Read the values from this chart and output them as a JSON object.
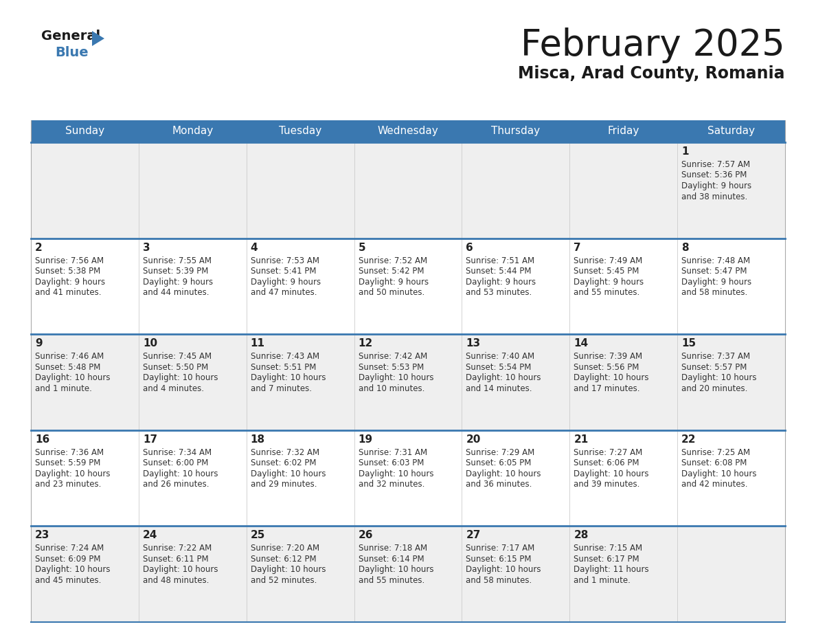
{
  "title": "February 2025",
  "subtitle": "Misca, Arad County, Romania",
  "header_color": "#3a78b0",
  "header_text_color": "#ffffff",
  "day_number_color": "#222222",
  "text_color": "#333333",
  "line_color": "#3a78b0",
  "bg_even": "#efefef",
  "bg_odd": "#ffffff",
  "days_of_week": [
    "Sunday",
    "Monday",
    "Tuesday",
    "Wednesday",
    "Thursday",
    "Friday",
    "Saturday"
  ],
  "weeks": [
    [
      {
        "day": "",
        "info": ""
      },
      {
        "day": "",
        "info": ""
      },
      {
        "day": "",
        "info": ""
      },
      {
        "day": "",
        "info": ""
      },
      {
        "day": "",
        "info": ""
      },
      {
        "day": "",
        "info": ""
      },
      {
        "day": "1",
        "info": "Sunrise: 7:57 AM\nSunset: 5:36 PM\nDaylight: 9 hours\nand 38 minutes."
      }
    ],
    [
      {
        "day": "2",
        "info": "Sunrise: 7:56 AM\nSunset: 5:38 PM\nDaylight: 9 hours\nand 41 minutes."
      },
      {
        "day": "3",
        "info": "Sunrise: 7:55 AM\nSunset: 5:39 PM\nDaylight: 9 hours\nand 44 minutes."
      },
      {
        "day": "4",
        "info": "Sunrise: 7:53 AM\nSunset: 5:41 PM\nDaylight: 9 hours\nand 47 minutes."
      },
      {
        "day": "5",
        "info": "Sunrise: 7:52 AM\nSunset: 5:42 PM\nDaylight: 9 hours\nand 50 minutes."
      },
      {
        "day": "6",
        "info": "Sunrise: 7:51 AM\nSunset: 5:44 PM\nDaylight: 9 hours\nand 53 minutes."
      },
      {
        "day": "7",
        "info": "Sunrise: 7:49 AM\nSunset: 5:45 PM\nDaylight: 9 hours\nand 55 minutes."
      },
      {
        "day": "8",
        "info": "Sunrise: 7:48 AM\nSunset: 5:47 PM\nDaylight: 9 hours\nand 58 minutes."
      }
    ],
    [
      {
        "day": "9",
        "info": "Sunrise: 7:46 AM\nSunset: 5:48 PM\nDaylight: 10 hours\nand 1 minute."
      },
      {
        "day": "10",
        "info": "Sunrise: 7:45 AM\nSunset: 5:50 PM\nDaylight: 10 hours\nand 4 minutes."
      },
      {
        "day": "11",
        "info": "Sunrise: 7:43 AM\nSunset: 5:51 PM\nDaylight: 10 hours\nand 7 minutes."
      },
      {
        "day": "12",
        "info": "Sunrise: 7:42 AM\nSunset: 5:53 PM\nDaylight: 10 hours\nand 10 minutes."
      },
      {
        "day": "13",
        "info": "Sunrise: 7:40 AM\nSunset: 5:54 PM\nDaylight: 10 hours\nand 14 minutes."
      },
      {
        "day": "14",
        "info": "Sunrise: 7:39 AM\nSunset: 5:56 PM\nDaylight: 10 hours\nand 17 minutes."
      },
      {
        "day": "15",
        "info": "Sunrise: 7:37 AM\nSunset: 5:57 PM\nDaylight: 10 hours\nand 20 minutes."
      }
    ],
    [
      {
        "day": "16",
        "info": "Sunrise: 7:36 AM\nSunset: 5:59 PM\nDaylight: 10 hours\nand 23 minutes."
      },
      {
        "day": "17",
        "info": "Sunrise: 7:34 AM\nSunset: 6:00 PM\nDaylight: 10 hours\nand 26 minutes."
      },
      {
        "day": "18",
        "info": "Sunrise: 7:32 AM\nSunset: 6:02 PM\nDaylight: 10 hours\nand 29 minutes."
      },
      {
        "day": "19",
        "info": "Sunrise: 7:31 AM\nSunset: 6:03 PM\nDaylight: 10 hours\nand 32 minutes."
      },
      {
        "day": "20",
        "info": "Sunrise: 7:29 AM\nSunset: 6:05 PM\nDaylight: 10 hours\nand 36 minutes."
      },
      {
        "day": "21",
        "info": "Sunrise: 7:27 AM\nSunset: 6:06 PM\nDaylight: 10 hours\nand 39 minutes."
      },
      {
        "day": "22",
        "info": "Sunrise: 7:25 AM\nSunset: 6:08 PM\nDaylight: 10 hours\nand 42 minutes."
      }
    ],
    [
      {
        "day": "23",
        "info": "Sunrise: 7:24 AM\nSunset: 6:09 PM\nDaylight: 10 hours\nand 45 minutes."
      },
      {
        "day": "24",
        "info": "Sunrise: 7:22 AM\nSunset: 6:11 PM\nDaylight: 10 hours\nand 48 minutes."
      },
      {
        "day": "25",
        "info": "Sunrise: 7:20 AM\nSunset: 6:12 PM\nDaylight: 10 hours\nand 52 minutes."
      },
      {
        "day": "26",
        "info": "Sunrise: 7:18 AM\nSunset: 6:14 PM\nDaylight: 10 hours\nand 55 minutes."
      },
      {
        "day": "27",
        "info": "Sunrise: 7:17 AM\nSunset: 6:15 PM\nDaylight: 10 hours\nand 58 minutes."
      },
      {
        "day": "28",
        "info": "Sunrise: 7:15 AM\nSunset: 6:17 PM\nDaylight: 11 hours\nand 1 minute."
      },
      {
        "day": "",
        "info": ""
      }
    ]
  ]
}
